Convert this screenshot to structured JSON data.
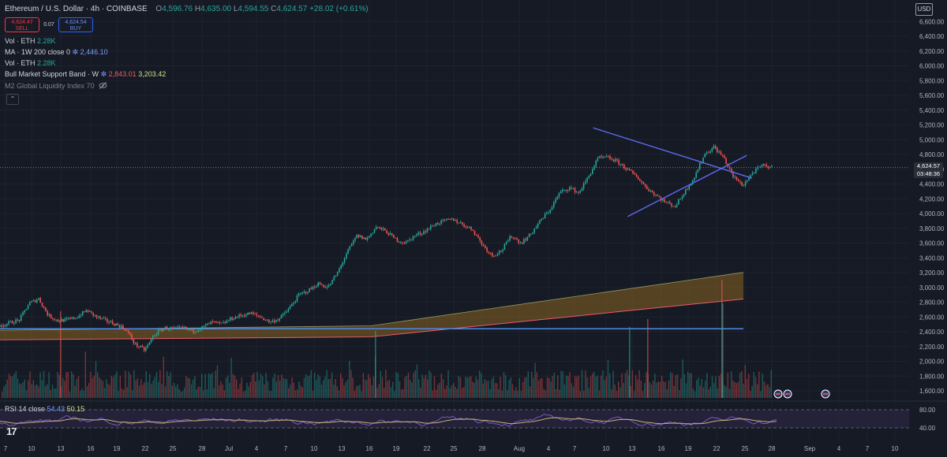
{
  "header": {
    "symbol": "Ethereum / U.S. Dollar · 4h · COINBASE",
    "open_label": "O",
    "open": "4,596.76",
    "high_label": "H",
    "high": "4,635.00",
    "low_label": "L",
    "low": "4,594.55",
    "close_label": "C",
    "close": "4,624.57",
    "change": "+28.02 (+0.61%)"
  },
  "trade": {
    "sell_price": "4,624.47",
    "sell_label": "SELL",
    "spread": "0.07",
    "buy_price": "4,624.54",
    "buy_label": "BUY"
  },
  "indicators": [
    {
      "name": "Vol · ETH",
      "value": "2.28K"
    },
    {
      "name": "MA · 1W 200 close 0",
      "value": "2,446.10"
    },
    {
      "name": "Vol · ETH",
      "value": "2.28K"
    },
    {
      "name": "Bull Market Support Band · W",
      "value1": "2,843.01",
      "value2": "3,203.42"
    },
    {
      "name": "M2 Global Liquidity Index 70"
    }
  ],
  "rsi": {
    "name": "RSI 14 close",
    "value1": "54.43",
    "value2": "50.15",
    "upper": 80,
    "lower": 40,
    "axis_labels": [
      "80.00",
      "40.00"
    ]
  },
  "currency": "USD",
  "last_price": {
    "price": "4,624.57",
    "countdown": "03:48:36"
  },
  "colors": {
    "background": "#161a25",
    "up": "#26a69a",
    "down": "#ef5350",
    "trendline": "#5b6cf0",
    "horizontal_line": "#4c8be8",
    "band_fill": "#8a6420",
    "rsi_line": "#c4b473",
    "rsi_band": "#2a2740"
  },
  "chart_data": {
    "type": "candlestick",
    "title": "Ethereum / U.S. Dollar · 4h · COINBASE",
    "ylim": [
      1500,
      6750
    ],
    "y_ticks": [
      "1,600.00",
      "1,800.00",
      "2,000.00",
      "2,200.00",
      "2,400.00",
      "2,600.00",
      "2,800.00",
      "3,000.00",
      "3,200.00",
      "3,400.00",
      "3,600.00",
      "3,800.00",
      "4,000.00",
      "4,200.00",
      "4,400.00",
      "4,600.00",
      "4,800.00",
      "5,000.00",
      "5,200.00",
      "5,400.00",
      "5,600.00",
      "5,800.00",
      "6,000.00",
      "6,200.00",
      "6,400.00",
      "6,600.00"
    ],
    "x_ticks": [
      "7",
      "10",
      "13",
      "16",
      "19",
      "22",
      "25",
      "28",
      "Jul",
      "4",
      "7",
      "10",
      "13",
      "16",
      "19",
      "22",
      "25",
      "28",
      "Aug",
      "4",
      "7",
      "10",
      "13",
      "16",
      "19",
      "22",
      "25",
      "28",
      "Sep",
      "4",
      "7",
      "10"
    ],
    "price_path": [
      2480,
      2520,
      2560,
      2780,
      2850,
      2620,
      2550,
      2560,
      2600,
      2690,
      2600,
      2550,
      2500,
      2440,
      2230,
      2150,
      2360,
      2450,
      2440,
      2450,
      2410,
      2460,
      2530,
      2500,
      2580,
      2620,
      2650,
      2600,
      2530,
      2580,
      2720,
      2900,
      2960,
      3050,
      3000,
      3200,
      3480,
      3700,
      3650,
      3820,
      3760,
      3650,
      3600,
      3700,
      3760,
      3850,
      3900,
      3920,
      3850,
      3780,
      3580,
      3430,
      3500,
      3700,
      3600,
      3720,
      3900,
      4050,
      4280,
      4350,
      4280,
      4500,
      4750,
      4760,
      4700,
      4600,
      4500,
      4350,
      4250,
      4150,
      4100,
      4300,
      4500,
      4800,
      4900,
      4760,
      4500,
      4380,
      4550,
      4650,
      4624
    ],
    "price_path_x_range": [
      "Jun 7",
      "Aug 28"
    ],
    "horizontal_line": 2440,
    "bull_market_support_band": {
      "from": [
        2290,
        2420
      ],
      "to": [
        2843.01,
        3203.42
      ]
    },
    "triangle": {
      "upper": [
        {
          "date": "Aug 14",
          "price": 5160
        },
        {
          "date": "Aug 31",
          "price": 4530
        }
      ],
      "lower": [
        {
          "date": "Aug 18",
          "price": 3960
        },
        {
          "date": "Aug 31",
          "price": 4740
        }
      ]
    },
    "last_price": 4624.57,
    "rsi_levels": [
      80,
      40
    ],
    "rsi_value": 54.43
  }
}
